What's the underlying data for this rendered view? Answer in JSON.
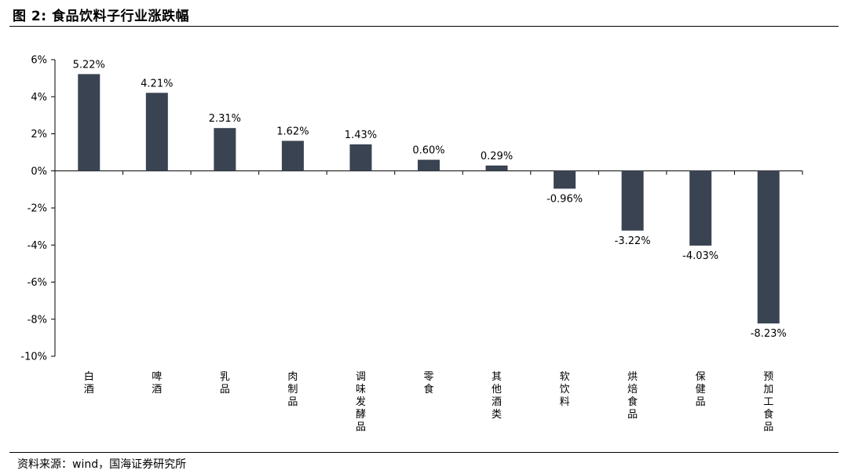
{
  "figure": {
    "title": "图 2: 食品饮料子行业涨跌幅",
    "source": "资料来源：wind，国海证券研究所"
  },
  "colors": {
    "bar": "#3a4352",
    "axis": "#000000",
    "text": "#000000"
  },
  "chart_data": {
    "type": "bar",
    "title": "食品饮料子行业涨跌幅",
    "xlabel": "",
    "ylabel": "",
    "unit": "%",
    "ylim": [
      -10,
      6
    ],
    "ytick_step": 2,
    "ytick_labels": [
      "6%",
      "4%",
      "2%",
      "0%",
      "-2%",
      "-4%",
      "-6%",
      "-8%",
      "-10%"
    ],
    "grid": false,
    "legend": "none",
    "categories": [
      "白酒",
      "啤酒",
      "乳品",
      "肉制品",
      "调味发酵品",
      "零食",
      "其他酒类",
      "软饮料",
      "烘焙食品",
      "保健品",
      "预加工食品"
    ],
    "values": [
      5.22,
      4.21,
      2.31,
      1.62,
      1.43,
      0.6,
      0.29,
      -0.96,
      -3.22,
      -4.03,
      -8.23
    ],
    "data_labels": [
      "5.22%",
      "4.21%",
      "2.31%",
      "1.62%",
      "1.43%",
      "0.60%",
      "0.29%",
      "-0.96%",
      "-3.22%",
      "-4.03%",
      "-8.23%"
    ]
  }
}
